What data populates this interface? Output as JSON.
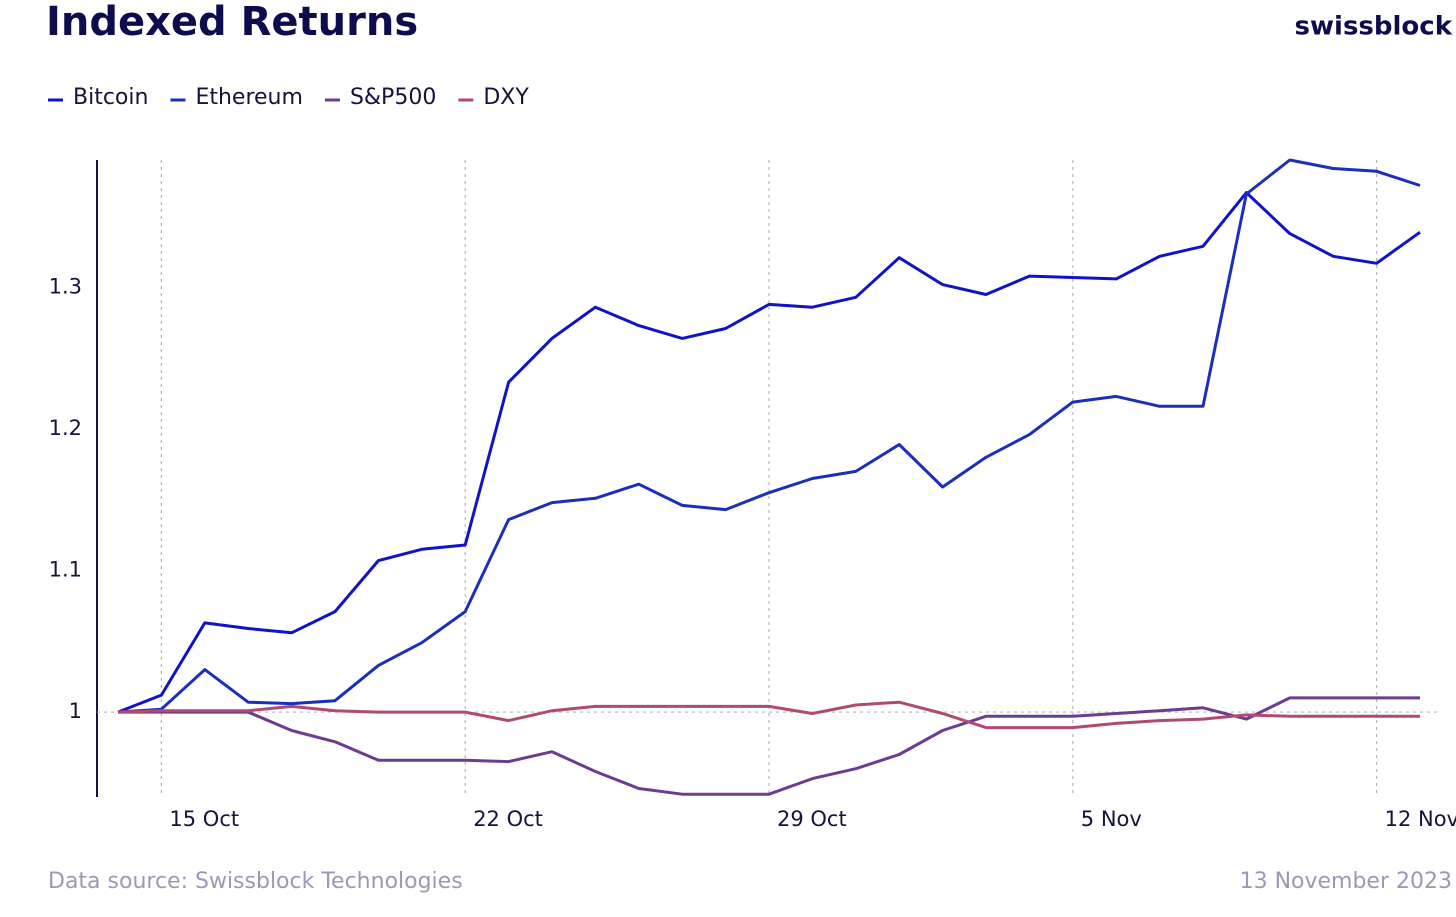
{
  "chart_data": {
    "type": "line",
    "title": "Indexed Returns",
    "logo": "swissblock",
    "source": "Data source: Swissblock Technologies",
    "date": "13 November 2023",
    "x": [
      "14 Oct",
      "15 Oct",
      "16 Oct",
      "17 Oct",
      "18 Oct",
      "19 Oct",
      "20 Oct",
      "21 Oct",
      "22 Oct",
      "23 Oct",
      "24 Oct",
      "25 Oct",
      "26 Oct",
      "27 Oct",
      "28 Oct",
      "29 Oct",
      "30 Oct",
      "31 Oct",
      "1 Nov",
      "2 Nov",
      "3 Nov",
      "4 Nov",
      "5 Nov",
      "6 Nov",
      "7 Nov",
      "8 Nov",
      "9 Nov",
      "10 Nov",
      "11 Nov",
      "12 Nov",
      "13 Nov"
    ],
    "xticks": [
      "15 Oct",
      "22 Oct",
      "29 Oct",
      "5 Nov",
      "12 Nov"
    ],
    "ylim": [
      0.94,
      1.39
    ],
    "yticks": [
      1,
      1.1,
      1.2,
      1.3
    ],
    "grid": "x",
    "reference_line": 1,
    "series": [
      {
        "name": "Bitcoin",
        "color": "#1212c8",
        "values": [
          1.0,
          1.012,
          1.063,
          1.059,
          1.056,
          1.071,
          1.107,
          1.115,
          1.118,
          1.233,
          1.264,
          1.286,
          1.273,
          1.264,
          1.271,
          1.288,
          1.286,
          1.293,
          1.321,
          1.302,
          1.295,
          1.308,
          1.307,
          1.306,
          1.322,
          1.329,
          1.367,
          1.338,
          1.322,
          1.317,
          1.339
        ]
      },
      {
        "name": "Ethereum",
        "color": "#1c2fb8",
        "values": [
          1.0,
          1.002,
          1.03,
          1.007,
          1.006,
          1.008,
          1.033,
          1.049,
          1.071,
          1.136,
          1.148,
          1.151,
          1.161,
          1.146,
          1.143,
          1.155,
          1.165,
          1.17,
          1.189,
          1.159,
          1.18,
          1.196,
          1.219,
          1.223,
          1.216,
          1.216,
          1.366,
          1.39,
          1.384,
          1.382,
          1.372
        ]
      },
      {
        "name": "S&P500",
        "color": "#6a3d8f",
        "values": [
          1.0,
          1.0,
          1.0,
          1.0,
          0.987,
          0.979,
          0.966,
          0.966,
          0.966,
          0.965,
          0.972,
          0.958,
          0.946,
          0.942,
          0.942,
          0.942,
          0.953,
          0.96,
          0.97,
          0.987,
          0.997,
          0.997,
          0.997,
          0.999,
          1.001,
          1.003,
          0.995,
          1.01,
          1.01,
          1.01,
          1.01
        ]
      },
      {
        "name": "DXY",
        "color": "#b04a72",
        "values": [
          1.0,
          1.001,
          1.001,
          1.001,
          1.004,
          1.001,
          1.0,
          1.0,
          1.0,
          0.994,
          1.001,
          1.004,
          1.004,
          1.004,
          1.004,
          1.004,
          0.999,
          1.005,
          1.007,
          0.999,
          0.989,
          0.989,
          0.989,
          0.992,
          0.994,
          0.995,
          0.998,
          0.997,
          0.997,
          0.997,
          0.997
        ]
      }
    ]
  }
}
